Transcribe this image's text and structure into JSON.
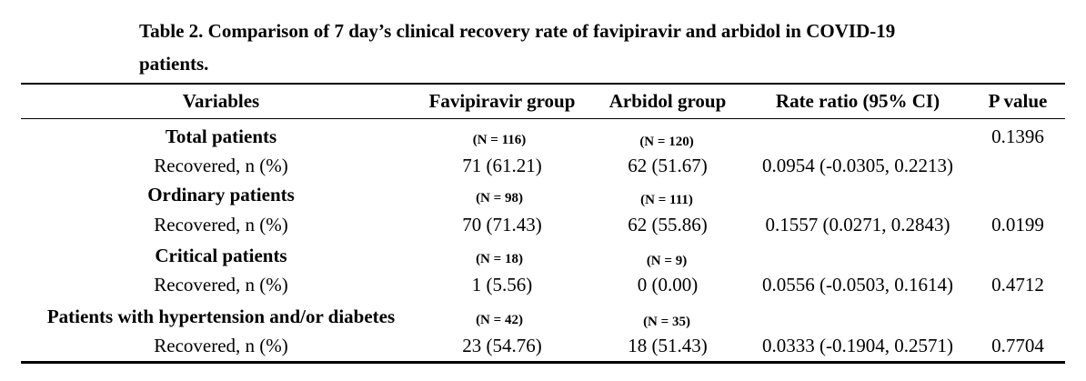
{
  "caption": "Table 2. Comparison of 7 day’s clinical recovery rate of favipiravir and arbidol in COVID-19 patients.",
  "table": {
    "headers": [
      "Variables",
      "Favipiravir group",
      "Arbidol group",
      "Rate ratio (95% CI)",
      "P value"
    ],
    "groups": [
      {
        "label": "Total patients",
        "favipiravir_n": "(N = 116)",
        "arbidol_n": "(N = 120)",
        "p_value": "0.1396",
        "row": {
          "label": "Recovered, n (%)",
          "favipiravir": "71 (61.21)",
          "arbidol": "62 (51.67)",
          "rate_ratio": "0.0954 (-0.0305, 0.2213)",
          "p_value": ""
        }
      },
      {
        "label": "Ordinary patients",
        "favipiravir_n": "(N = 98)",
        "arbidol_n": "(N = 111)",
        "p_value": "",
        "row": {
          "label": "Recovered, n (%)",
          "favipiravir": "70 (71.43)",
          "arbidol": "62 (55.86)",
          "rate_ratio": "0.1557 (0.0271, 0.2843)",
          "p_value": "0.0199"
        }
      },
      {
        "label": "Critical patients",
        "favipiravir_n": "(N = 18)",
        "arbidol_n": "(N = 9)",
        "p_value": "",
        "row": {
          "label": "Recovered, n (%)",
          "favipiravir": "1 (5.56)",
          "arbidol": "0 (0.00)",
          "rate_ratio": "0.0556 (-0.0503, 0.1614)",
          "p_value": "0.4712"
        }
      },
      {
        "label": "Patients with hypertension and/or diabetes",
        "favipiravir_n": "(N = 42)",
        "arbidol_n": "(N = 35)",
        "p_value": "",
        "row": {
          "label": "Recovered, n (%)",
          "favipiravir": "23 (54.76)",
          "arbidol": "18 (51.43)",
          "rate_ratio": "0.0333 (-0.1904, 0.2571)",
          "p_value": "0.7704"
        }
      }
    ]
  }
}
